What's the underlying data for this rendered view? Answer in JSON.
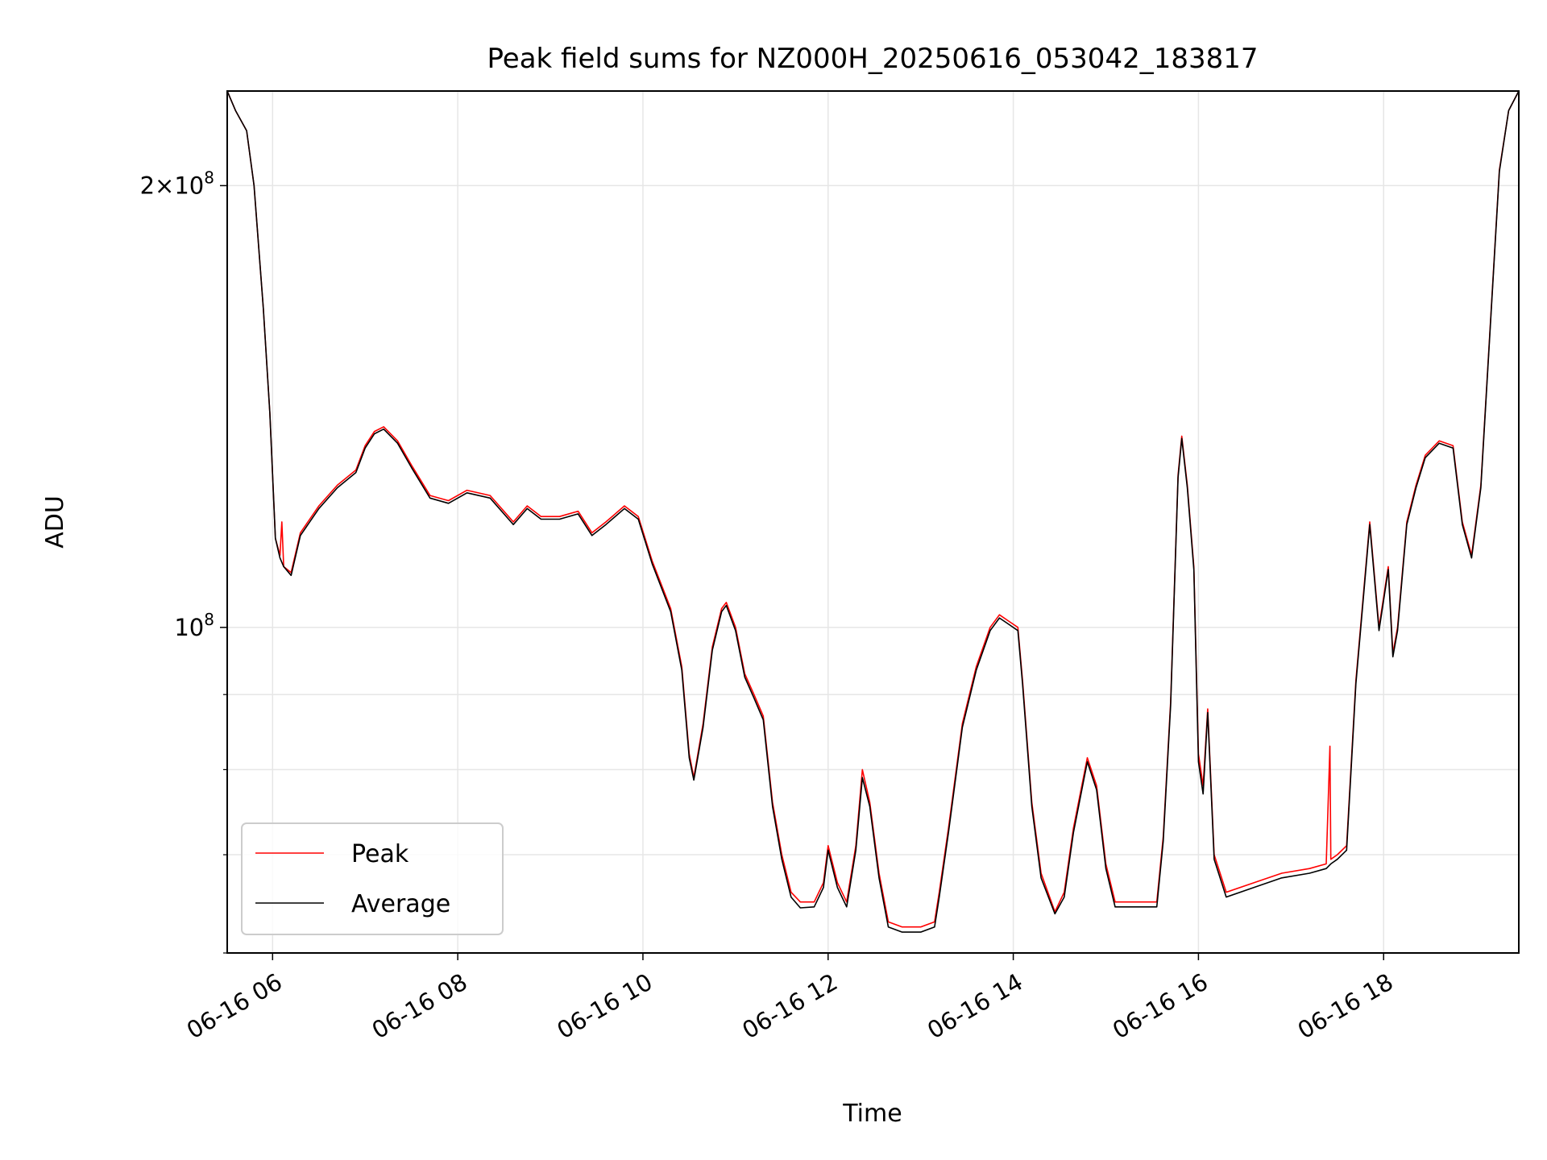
{
  "chart_data": {
    "type": "line",
    "title": "Peak field sums for NZ000H_20250616_053042_183817",
    "xlabel": "Time",
    "ylabel": "ADU",
    "y_scale": "log",
    "x_unit": "hours",
    "xlim": [
      5.51,
      19.46
    ],
    "ylim": [
      60000000,
      232000000
    ],
    "x_ticks": [
      {
        "value": 6,
        "label": "06-16 06"
      },
      {
        "value": 8,
        "label": "06-16 08"
      },
      {
        "value": 10,
        "label": "06-16 10"
      },
      {
        "value": 12,
        "label": "06-16 12"
      },
      {
        "value": 14,
        "label": "06-16 14"
      },
      {
        "value": 16,
        "label": "06-16 16"
      },
      {
        "value": 18,
        "label": "06-16 18"
      }
    ],
    "y_ticks_major": [
      {
        "value": 100000000,
        "base": "10",
        "exp": "8"
      },
      {
        "value": 200000000,
        "base": "2×10",
        "exp": "8"
      }
    ],
    "y_ticks_minor": [
      60000000,
      70000000,
      80000000,
      90000000
    ],
    "grid": true,
    "legend": {
      "position": "lower-left"
    },
    "colors": {
      "peak": "#ff0000",
      "average": "#000000",
      "grid": "#e6e6e6"
    },
    "series": [
      {
        "name": "Peak",
        "color": "#ff0000",
        "points": [
          [
            5.51,
            232000000
          ],
          [
            5.6,
            225000000
          ],
          [
            5.72,
            218000000
          ],
          [
            5.8,
            200000000
          ],
          [
            5.9,
            165000000
          ],
          [
            5.97,
            140000000
          ],
          [
            6.03,
            115000000
          ],
          [
            6.08,
            112000000
          ],
          [
            6.1,
            118000000
          ],
          [
            6.12,
            110000000
          ],
          [
            6.2,
            109000000
          ],
          [
            6.3,
            116000000
          ],
          [
            6.5,
            121000000
          ],
          [
            6.7,
            125000000
          ],
          [
            6.9,
            128000000
          ],
          [
            7.0,
            133000000
          ],
          [
            7.1,
            136000000
          ],
          [
            7.2,
            137000000
          ],
          [
            7.35,
            134000000
          ],
          [
            7.5,
            129000000
          ],
          [
            7.7,
            123000000
          ],
          [
            7.9,
            122000000
          ],
          [
            8.1,
            124000000
          ],
          [
            8.35,
            123000000
          ],
          [
            8.6,
            118000000
          ],
          [
            8.75,
            121000000
          ],
          [
            8.9,
            119000000
          ],
          [
            9.1,
            119000000
          ],
          [
            9.3,
            120000000
          ],
          [
            9.45,
            116000000
          ],
          [
            9.6,
            118000000
          ],
          [
            9.8,
            121000000
          ],
          [
            9.95,
            119000000
          ],
          [
            10.1,
            111000000
          ],
          [
            10.3,
            103000000
          ],
          [
            10.42,
            94000000
          ],
          [
            10.5,
            82000000
          ],
          [
            10.55,
            79000000
          ],
          [
            10.65,
            86000000
          ],
          [
            10.75,
            97000000
          ],
          [
            10.85,
            103000000
          ],
          [
            10.9,
            104000000
          ],
          [
            11.0,
            100000000
          ],
          [
            11.1,
            93000000
          ],
          [
            11.2,
            90000000
          ],
          [
            11.3,
            87000000
          ],
          [
            11.4,
            76000000
          ],
          [
            11.5,
            70000000
          ],
          [
            11.6,
            66000000
          ],
          [
            11.7,
            65000000
          ],
          [
            11.85,
            65000000
          ],
          [
            11.95,
            67000000
          ],
          [
            12.0,
            71000000
          ],
          [
            12.1,
            67000000
          ],
          [
            12.2,
            65000000
          ],
          [
            12.3,
            71000000
          ],
          [
            12.37,
            80000000
          ],
          [
            12.45,
            76000000
          ],
          [
            12.55,
            68000000
          ],
          [
            12.65,
            63000000
          ],
          [
            12.8,
            62500000
          ],
          [
            13.0,
            62500000
          ],
          [
            13.15,
            63000000
          ],
          [
            13.2,
            66000000
          ],
          [
            13.3,
            73000000
          ],
          [
            13.45,
            86000000
          ],
          [
            13.6,
            94000000
          ],
          [
            13.75,
            100000000
          ],
          [
            13.85,
            102000000
          ],
          [
            13.95,
            101000000
          ],
          [
            14.05,
            100000000
          ],
          [
            14.1,
            92000000
          ],
          [
            14.2,
            76000000
          ],
          [
            14.3,
            68000000
          ],
          [
            14.45,
            64000000
          ],
          [
            14.55,
            66000000
          ],
          [
            14.65,
            73000000
          ],
          [
            14.8,
            81500000
          ],
          [
            14.9,
            78000000
          ],
          [
            15.0,
            69000000
          ],
          [
            15.1,
            65000000
          ],
          [
            15.3,
            65000000
          ],
          [
            15.55,
            65000000
          ],
          [
            15.62,
            72000000
          ],
          [
            15.7,
            89000000
          ],
          [
            15.78,
            127000000
          ],
          [
            15.82,
            135000000
          ],
          [
            15.88,
            125000000
          ],
          [
            15.95,
            110000000
          ],
          [
            16.0,
            82000000
          ],
          [
            16.05,
            78000000
          ],
          [
            16.1,
            88000000
          ],
          [
            16.17,
            70000000
          ],
          [
            16.3,
            66000000
          ],
          [
            16.6,
            67000000
          ],
          [
            16.9,
            68000000
          ],
          [
            17.2,
            68500000
          ],
          [
            17.38,
            69000000
          ],
          [
            17.42,
            83000000
          ],
          [
            17.43,
            69500000
          ],
          [
            17.5,
            70000000
          ],
          [
            17.6,
            71000000
          ],
          [
            17.7,
            92000000
          ],
          [
            17.85,
            118000000
          ],
          [
            17.95,
            100000000
          ],
          [
            18.05,
            110000000
          ],
          [
            18.1,
            96000000
          ],
          [
            18.15,
            100000000
          ],
          [
            18.25,
            118000000
          ],
          [
            18.35,
            125000000
          ],
          [
            18.45,
            131000000
          ],
          [
            18.6,
            134000000
          ],
          [
            18.75,
            133000000
          ],
          [
            18.85,
            118000000
          ],
          [
            18.95,
            112000000
          ],
          [
            19.05,
            125000000
          ],
          [
            19.15,
            160000000
          ],
          [
            19.25,
            205000000
          ],
          [
            19.35,
            225000000
          ],
          [
            19.46,
            232000000
          ]
        ]
      },
      {
        "name": "Average",
        "color": "#000000",
        "points": [
          [
            5.51,
            232000000
          ],
          [
            5.6,
            225000000
          ],
          [
            5.72,
            218000000
          ],
          [
            5.8,
            200000000
          ],
          [
            5.9,
            165000000
          ],
          [
            5.97,
            140000000
          ],
          [
            6.03,
            115000000
          ],
          [
            6.08,
            111500000
          ],
          [
            6.12,
            110000000
          ],
          [
            6.2,
            108500000
          ],
          [
            6.3,
            115500000
          ],
          [
            6.5,
            120500000
          ],
          [
            6.7,
            124500000
          ],
          [
            6.9,
            127500000
          ],
          [
            7.0,
            132500000
          ],
          [
            7.1,
            135500000
          ],
          [
            7.2,
            136500000
          ],
          [
            7.35,
            133500000
          ],
          [
            7.5,
            128500000
          ],
          [
            7.7,
            122500000
          ],
          [
            7.9,
            121500000
          ],
          [
            8.1,
            123500000
          ],
          [
            8.35,
            122500000
          ],
          [
            8.6,
            117500000
          ],
          [
            8.75,
            120500000
          ],
          [
            8.9,
            118500000
          ],
          [
            9.1,
            118500000
          ],
          [
            9.3,
            119500000
          ],
          [
            9.45,
            115500000
          ],
          [
            9.6,
            117500000
          ],
          [
            9.8,
            120500000
          ],
          [
            9.95,
            118500000
          ],
          [
            10.1,
            110500000
          ],
          [
            10.3,
            102500000
          ],
          [
            10.42,
            93500000
          ],
          [
            10.5,
            81500000
          ],
          [
            10.55,
            78700000
          ],
          [
            10.65,
            85500000
          ],
          [
            10.75,
            96500000
          ],
          [
            10.85,
            102500000
          ],
          [
            10.9,
            103500000
          ],
          [
            11.0,
            99500000
          ],
          [
            11.1,
            92500000
          ],
          [
            11.2,
            89500000
          ],
          [
            11.3,
            86500000
          ],
          [
            11.4,
            75500000
          ],
          [
            11.5,
            69500000
          ],
          [
            11.6,
            65500000
          ],
          [
            11.7,
            64400000
          ],
          [
            11.85,
            64500000
          ],
          [
            11.95,
            66500000
          ],
          [
            12.0,
            70500000
          ],
          [
            12.1,
            66500000
          ],
          [
            12.2,
            64500000
          ],
          [
            12.3,
            70500000
          ],
          [
            12.37,
            79000000
          ],
          [
            12.45,
            75500000
          ],
          [
            12.55,
            67500000
          ],
          [
            12.65,
            62500000
          ],
          [
            12.8,
            62000000
          ],
          [
            13.0,
            62000000
          ],
          [
            13.15,
            62500000
          ],
          [
            13.2,
            65500000
          ],
          [
            13.3,
            72500000
          ],
          [
            13.45,
            85500000
          ],
          [
            13.6,
            93500000
          ],
          [
            13.75,
            99500000
          ],
          [
            13.85,
            101500000
          ],
          [
            13.95,
            100500000
          ],
          [
            14.05,
            99500000
          ],
          [
            14.1,
            91500000
          ],
          [
            14.2,
            75500000
          ],
          [
            14.3,
            67500000
          ],
          [
            14.45,
            63800000
          ],
          [
            14.55,
            65500000
          ],
          [
            14.65,
            72500000
          ],
          [
            14.8,
            81000000
          ],
          [
            14.9,
            77500000
          ],
          [
            15.0,
            68500000
          ],
          [
            15.1,
            64500000
          ],
          [
            15.3,
            64500000
          ],
          [
            15.55,
            64500000
          ],
          [
            15.62,
            71500000
          ],
          [
            15.7,
            88500000
          ],
          [
            15.78,
            126500000
          ],
          [
            15.82,
            134500000
          ],
          [
            15.88,
            124500000
          ],
          [
            15.95,
            109500000
          ],
          [
            16.0,
            81000000
          ],
          [
            16.05,
            77000000
          ],
          [
            16.1,
            87500000
          ],
          [
            16.17,
            69500000
          ],
          [
            16.3,
            65500000
          ],
          [
            16.6,
            66500000
          ],
          [
            16.9,
            67500000
          ],
          [
            17.2,
            68000000
          ],
          [
            17.38,
            68500000
          ],
          [
            17.43,
            69000000
          ],
          [
            17.5,
            69500000
          ],
          [
            17.6,
            70500000
          ],
          [
            17.7,
            91500000
          ],
          [
            17.85,
            117500000
          ],
          [
            17.95,
            99500000
          ],
          [
            18.05,
            109500000
          ],
          [
            18.1,
            95500000
          ],
          [
            18.15,
            99500000
          ],
          [
            18.25,
            117500000
          ],
          [
            18.35,
            124500000
          ],
          [
            18.45,
            130500000
          ],
          [
            18.6,
            133500000
          ],
          [
            18.75,
            132500000
          ],
          [
            18.85,
            117500000
          ],
          [
            18.95,
            111500000
          ],
          [
            19.05,
            124500000
          ],
          [
            19.15,
            159500000
          ],
          [
            19.25,
            204500000
          ],
          [
            19.35,
            225000000
          ],
          [
            19.46,
            232000000
          ]
        ]
      }
    ]
  }
}
